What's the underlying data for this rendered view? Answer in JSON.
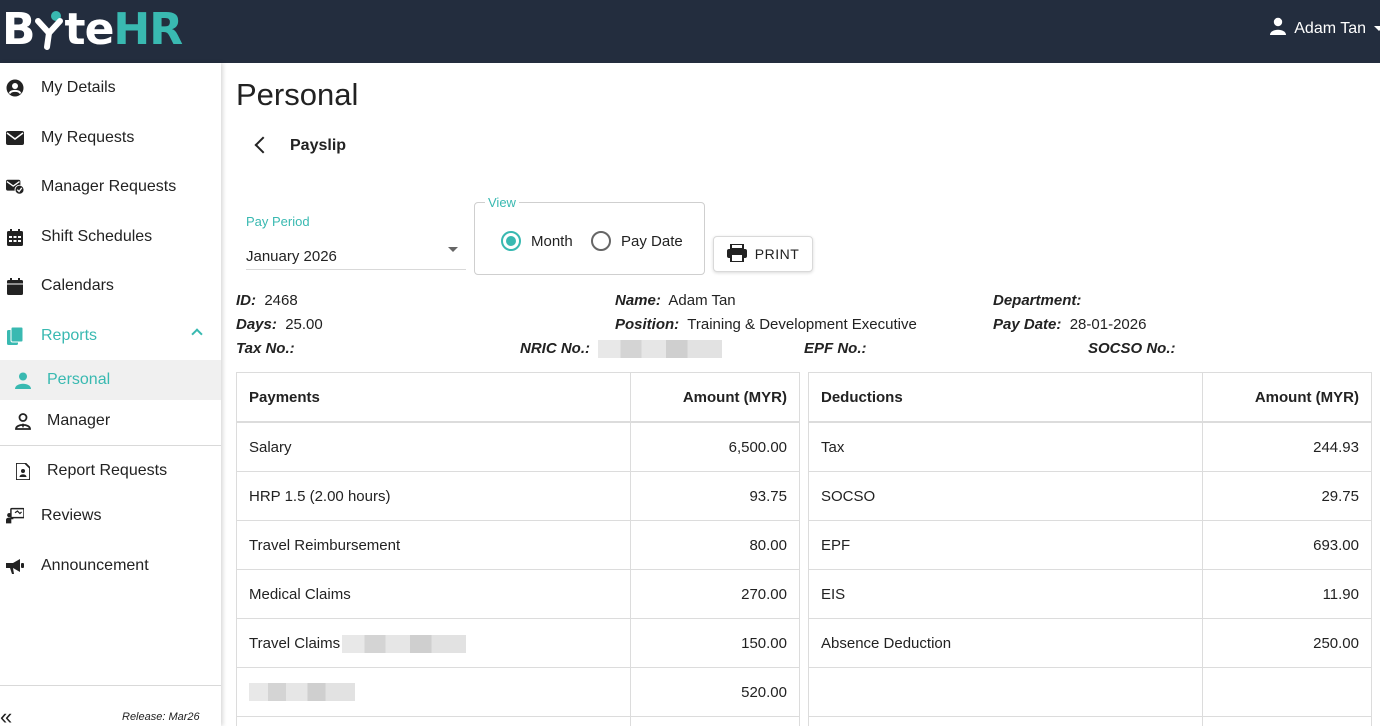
{
  "app": {
    "logo_part1": "B",
    "logo_part2": "te",
    "logo_part3": "HR",
    "user_name": "Adam Tan",
    "colors": {
      "topbar": "#232d3e",
      "accent": "#39b9b1"
    }
  },
  "sidebar": {
    "items": [
      {
        "label": "My Details",
        "icon": "user-circle-icon"
      },
      {
        "label": "My Requests",
        "icon": "envelope-icon"
      },
      {
        "label": "Manager Requests",
        "icon": "envelope-check-icon"
      },
      {
        "label": "Shift Schedules",
        "icon": "calendar-grid-icon"
      },
      {
        "label": "Calendars",
        "icon": "calendar-icon"
      },
      {
        "label": "Reports",
        "icon": "copy-icon"
      },
      {
        "label": "Personal",
        "icon": "user-icon"
      },
      {
        "label": "Manager",
        "icon": "user-tie-icon"
      },
      {
        "label": "Report Requests",
        "icon": "file-user-icon"
      },
      {
        "label": "Reviews",
        "icon": "chalkboard-user-icon"
      },
      {
        "label": "Announcement",
        "icon": "bullhorn-icon"
      }
    ],
    "collapse_label": "«",
    "release": "Release: Mar26"
  },
  "main": {
    "title": "Personal",
    "subtitle": "Payslip",
    "pay_period_label": "Pay Period",
    "pay_period_value": "January 2026",
    "view_legend": "View",
    "view_options": [
      "Month",
      "Pay Date"
    ],
    "view_selected": "Month",
    "print_label": "PRINT"
  },
  "info": {
    "id_label": "ID:",
    "id_value": "2468",
    "days_label": "Days:",
    "days_value": "25.00",
    "tax_label": "Tax No.:",
    "name_label": "Name:",
    "name_value": "Adam Tan",
    "position_label": "Position:",
    "position_value": "Training & Development Executive",
    "nric_label": "NRIC No.:",
    "department_label": "Department:",
    "paydate_label": "Pay Date:",
    "paydate_value": "28-01-2026",
    "epf_label": "EPF No.:",
    "socso_label": "SOCSO No.:"
  },
  "payments": {
    "headers": [
      "Payments",
      "Amount (MYR)"
    ],
    "rows": [
      [
        "Salary",
        "6,500.00"
      ],
      [
        "HRP 1.5 (2.00 hours)",
        "93.75"
      ],
      [
        "Travel Reimbursement",
        "80.00"
      ],
      [
        "Medical Claims",
        "270.00"
      ],
      [
        "Travel Claims",
        "150.00"
      ],
      [
        "",
        "520.00"
      ]
    ]
  },
  "deductions": {
    "headers": [
      "Deductions",
      "Amount (MYR)"
    ],
    "rows": [
      [
        "Tax",
        "244.93"
      ],
      [
        "SOCSO",
        "29.75"
      ],
      [
        "EPF",
        "693.00"
      ],
      [
        "EIS",
        "11.90"
      ],
      [
        "Absence Deduction",
        "250.00"
      ],
      [
        "",
        ""
      ]
    ]
  }
}
